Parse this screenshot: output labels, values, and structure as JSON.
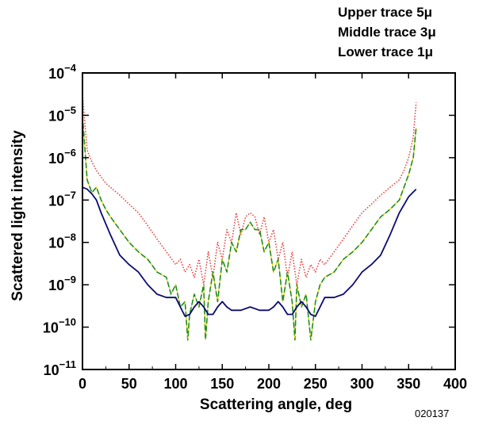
{
  "legend": [
    "Upper trace 5μ",
    "Middle trace 3μ",
    "Lower trace 1μ"
  ],
  "figure_code": "020137",
  "chart_data": {
    "type": "line",
    "xlabel": "Scattering angle, deg",
    "ylabel": "Scattered light intensity",
    "xlim": [
      0,
      400
    ],
    "ylim": [
      1e-11,
      0.0001
    ],
    "yscale": "log",
    "grid": false,
    "legend_placement": "top-right",
    "x_ticks": [
      0,
      50,
      100,
      150,
      200,
      250,
      300,
      350,
      400
    ],
    "y_ticks": [
      {
        "value": 1e-11,
        "label": "10-11"
      },
      {
        "value": 1e-10,
        "label": "10-10"
      },
      {
        "value": 1e-09,
        "label": "10-9"
      },
      {
        "value": 1e-08,
        "label": "10-8"
      },
      {
        "value": 1e-07,
        "label": "10-7"
      },
      {
        "value": 1e-06,
        "label": "10-6"
      },
      {
        "value": 1e-05,
        "label": "10-5"
      },
      {
        "value": 0.0001,
        "label": "10-4"
      }
    ],
    "series": [
      {
        "name": "Upper trace 5μ",
        "color": "#e8403c",
        "style": "dotted",
        "x": [
          0,
          5,
          10,
          15,
          20,
          25,
          30,
          40,
          50,
          60,
          70,
          80,
          90,
          100,
          105,
          110,
          115,
          120,
          125,
          130,
          135,
          140,
          145,
          150,
          155,
          160,
          165,
          170,
          175,
          180,
          185,
          190,
          195,
          200,
          205,
          210,
          215,
          220,
          225,
          230,
          235,
          240,
          245,
          250,
          255,
          260,
          270,
          280,
          290,
          300,
          310,
          320,
          330,
          340,
          345,
          350,
          355,
          358
        ],
        "y": [
          3e-05,
          1.5e-06,
          8e-07,
          5e-07,
          3.5e-07,
          2.5e-07,
          2e-07,
          1.3e-07,
          8e-08,
          5e-08,
          2.5e-08,
          1.2e-08,
          6e-09,
          3e-09,
          4e-09,
          2e-09,
          3e-09,
          1.5e-09,
          4e-09,
          1e-09,
          6e-09,
          1.5e-09,
          1e-08,
          4e-09,
          2e-08,
          1e-08,
          5e-08,
          1.5e-08,
          4e-08,
          5e-08,
          4e-08,
          1.5e-08,
          4e-08,
          1e-08,
          2e-08,
          4e-09,
          1e-08,
          1.5e-09,
          6e-09,
          1e-09,
          4e-09,
          1.5e-09,
          3e-09,
          2e-09,
          4e-09,
          3e-09,
          6e-09,
          1.2e-08,
          2.5e-08,
          5e-08,
          8e-08,
          1.3e-07,
          2e-07,
          3e-07,
          5e-07,
          1e-06,
          3e-06,
          2e-05
        ]
      },
      {
        "name": "Middle trace 3μ",
        "color": "#1e8c1e",
        "style": "dashed",
        "x": [
          0,
          5,
          10,
          15,
          20,
          25,
          30,
          40,
          50,
          60,
          70,
          80,
          90,
          95,
          100,
          105,
          110,
          113,
          115,
          120,
          125,
          130,
          132,
          135,
          140,
          145,
          150,
          155,
          160,
          165,
          170,
          175,
          180,
          185,
          190,
          195,
          200,
          205,
          210,
          215,
          220,
          225,
          228,
          230,
          235,
          240,
          245,
          250,
          255,
          260,
          270,
          280,
          290,
          300,
          310,
          320,
          330,
          340,
          350,
          355,
          358
        ],
        "y": [
          1e-05,
          3e-07,
          1.5e-07,
          2e-07,
          1e-07,
          6e-08,
          4e-08,
          2e-08,
          1e-08,
          6e-09,
          4e-09,
          2e-09,
          1.5e-09,
          6e-10,
          1e-09,
          3e-10,
          4e-10,
          5e-11,
          2e-10,
          6e-10,
          3e-10,
          1e-09,
          5e-11,
          4e-10,
          2e-09,
          4e-10,
          4e-09,
          2e-09,
          1e-08,
          6e-09,
          2e-08,
          2e-08,
          3e-08,
          2e-08,
          2e-08,
          6e-09,
          1e-08,
          2e-09,
          4e-09,
          4e-10,
          2e-09,
          4e-10,
          5e-11,
          1e-09,
          3e-10,
          6e-10,
          5e-11,
          4e-10,
          1e-09,
          1.5e-09,
          2e-09,
          4e-09,
          6e-09,
          1e-08,
          2e-08,
          4e-08,
          6e-08,
          1e-07,
          4e-07,
          1e-06,
          5e-06
        ]
      },
      {
        "name": "Lower trace 1μ",
        "color": "#0b0b6e",
        "style": "solid",
        "x": [
          0,
          5,
          10,
          15,
          20,
          30,
          40,
          50,
          60,
          70,
          80,
          90,
          100,
          105,
          110,
          115,
          120,
          125,
          130,
          135,
          140,
          145,
          150,
          155,
          160,
          170,
          180,
          190,
          200,
          205,
          210,
          215,
          220,
          225,
          230,
          235,
          240,
          245,
          250,
          255,
          260,
          270,
          280,
          290,
          300,
          310,
          320,
          330,
          340,
          350,
          358
        ],
        "y": [
          2e-07,
          1.8e-07,
          1.4e-07,
          1e-07,
          5e-08,
          1.5e-08,
          5e-09,
          3e-09,
          2e-09,
          1e-09,
          6e-10,
          5e-10,
          5e-10,
          3e-10,
          1.8e-10,
          2e-10,
          3e-10,
          4e-10,
          3e-10,
          2e-10,
          2e-10,
          3e-10,
          4e-10,
          3e-10,
          2.5e-10,
          2.5e-10,
          3e-10,
          2.5e-10,
          2.5e-10,
          3e-10,
          4e-10,
          3e-10,
          2e-10,
          2e-10,
          3e-10,
          4e-10,
          3e-10,
          2e-10,
          1.8e-10,
          3e-10,
          5e-10,
          5e-10,
          6e-10,
          1e-09,
          2e-09,
          3e-09,
          5e-09,
          1.5e-08,
          5e-08,
          1.2e-07,
          1.8e-07
        ]
      }
    ]
  }
}
